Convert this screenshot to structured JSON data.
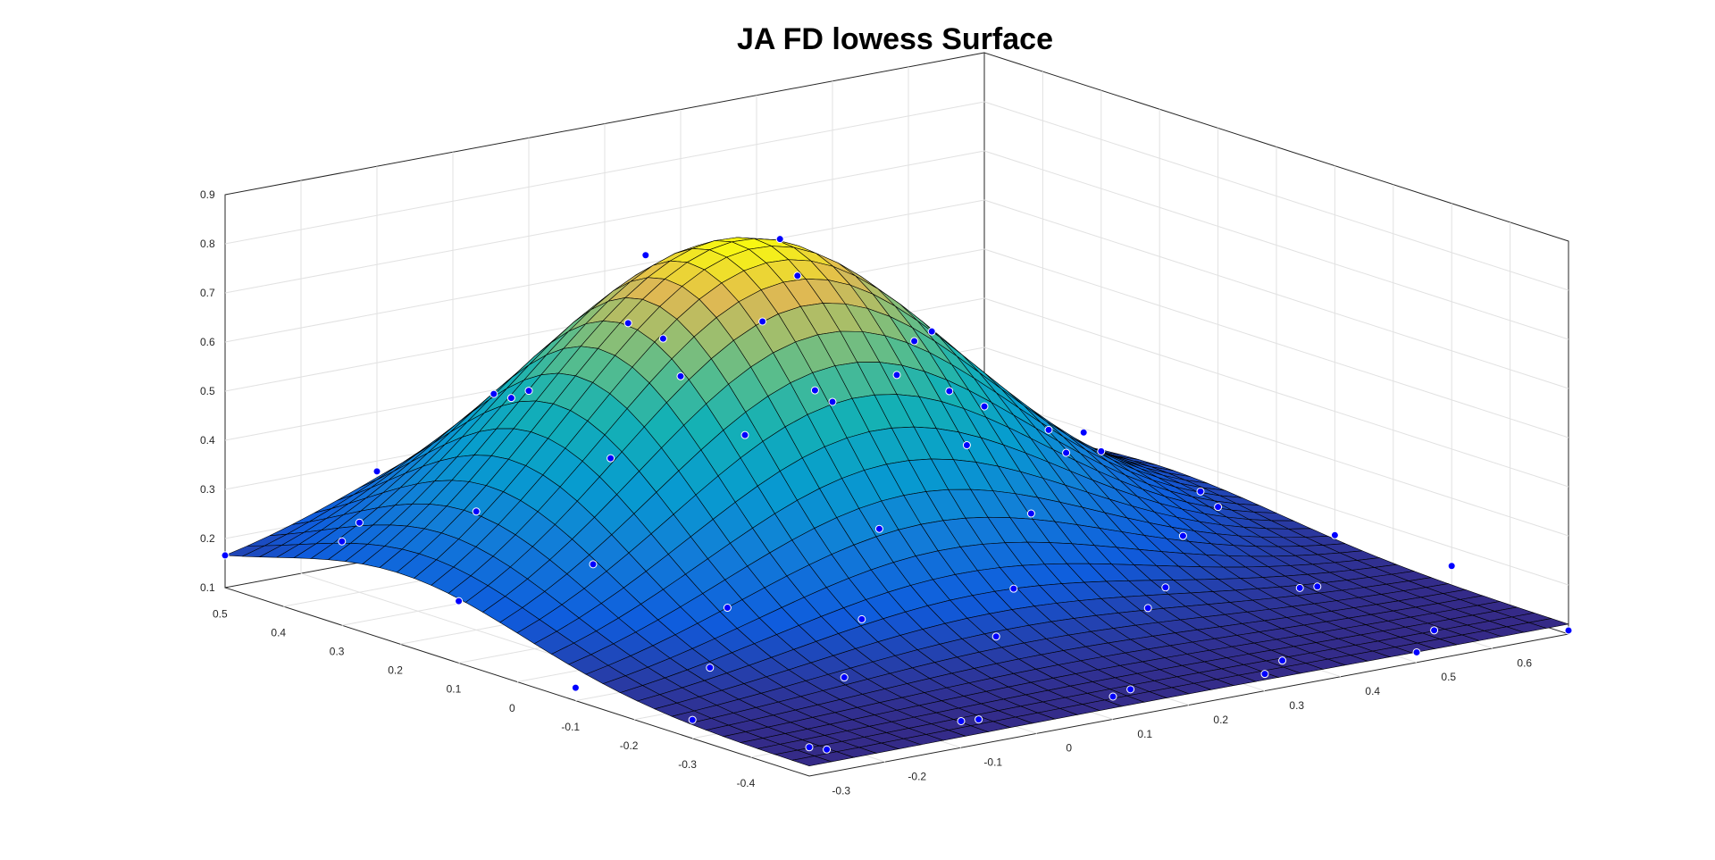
{
  "figure": {
    "title": "JA FD lowess Surface"
  },
  "chart_data": {
    "type": "surface",
    "title": "JA FD lowess Surface",
    "xlabel": "",
    "ylabel": "",
    "zlabel": "",
    "x_range": [
      -0.4,
      0.6
    ],
    "y_range": [
      -0.4,
      0.6
    ],
    "z_range": [
      0.1,
      0.9
    ],
    "grid": true,
    "box": "three-back-planes",
    "x_ticks": [
      "0.5",
      "0.4",
      "0.3",
      "0.2",
      "0.1",
      "0",
      "-0.1",
      "-0.2",
      "-0.3",
      "-0.4"
    ],
    "y_ticks": [
      "-0.3",
      "-0.2",
      "-0.1",
      "0",
      "0.1",
      "0.2",
      "0.3",
      "0.4",
      "0.5",
      "0.6"
    ],
    "z_ticks": [
      "0.1",
      "0.2",
      "0.3",
      "0.4",
      "0.5",
      "0.6",
      "0.7",
      "0.8",
      "0.9"
    ],
    "colormap": "parula",
    "surface_corner_values": {
      "left_corner": 0.13,
      "front_corner": 0.13,
      "right_corner": 0.12,
      "peak": 0.79
    },
    "scatter_color": "#0000ff",
    "scatter_edge_color": "#ffffff"
  }
}
